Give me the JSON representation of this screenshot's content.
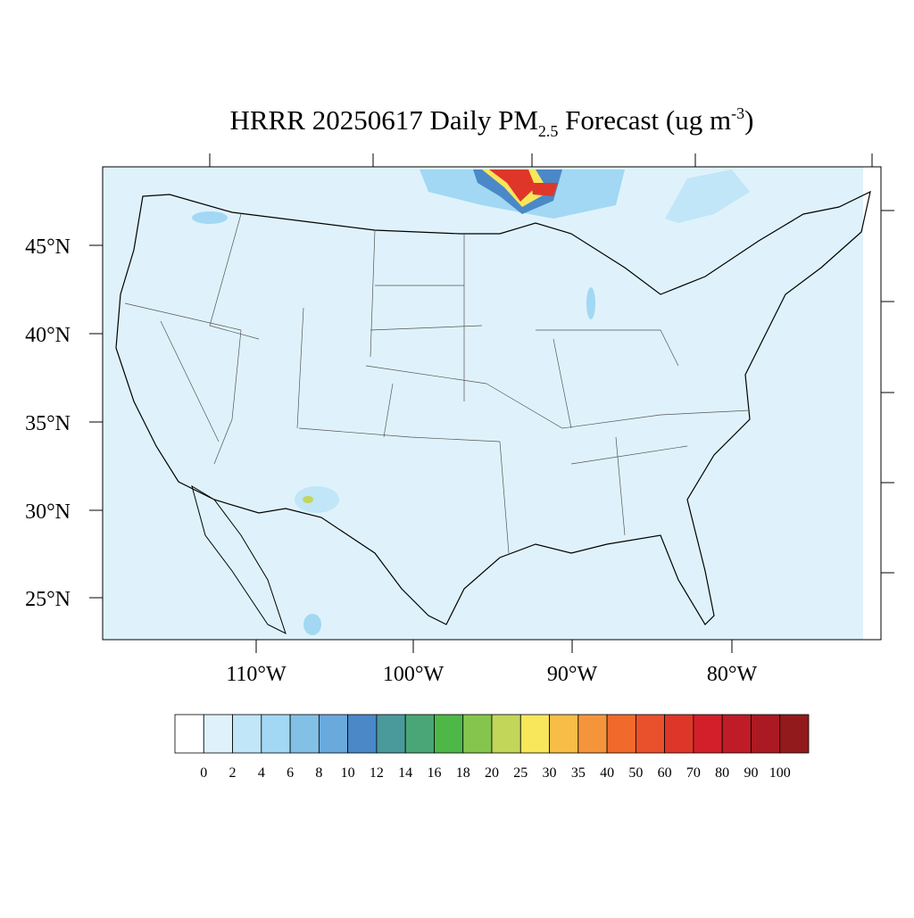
{
  "map": {
    "title": {
      "main": "HRRR 20250617 Daily PM",
      "sub": "2.5",
      "mid": " Forecast (ug m",
      "sup": "-3",
      "end": ")"
    },
    "lat_labels": [
      "45°N",
      "40°N",
      "35°N",
      "30°N",
      "25°N"
    ],
    "lon_labels": [
      "110°W",
      "100°W",
      "90°W",
      "80°W"
    ],
    "colorbar": {
      "levels": [
        0,
        2,
        4,
        6,
        8,
        10,
        12,
        14,
        16,
        18,
        20,
        25,
        30,
        35,
        40,
        50,
        60,
        70,
        80,
        90,
        100
      ],
      "colors": [
        "#ffffff",
        "#dff2fb",
        "#c0e6f7",
        "#a2d8f3",
        "#83c0e6",
        "#6aa9dc",
        "#4a88c8",
        "#4a9a9c",
        "#4aa676",
        "#4db848",
        "#85c54e",
        "#c2d65a",
        "#f8e65b",
        "#f7bd47",
        "#f5953b",
        "#f06b2b",
        "#e8512b",
        "#de3729",
        "#d31f2a",
        "#bf1c27",
        "#ab1a22",
        "#931a1c"
      ]
    }
  }
}
